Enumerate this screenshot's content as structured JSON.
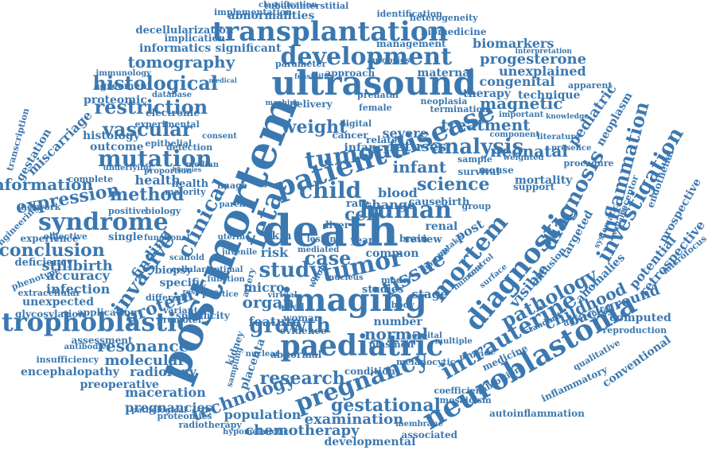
{
  "accent_color": "#3b78b0",
  "words": [
    "postmortem",
    "death",
    "ultrasound",
    "imaging",
    "paediatric",
    "tumour",
    "tumor",
    "disease",
    "diagnostic",
    "mortem",
    "patient",
    "child",
    "fetal",
    "human",
    "trophoblastic",
    "syndrome",
    "transplantation",
    "development",
    "neuroblastoma",
    "intrauterine",
    "pregnancy",
    "invasive",
    "clinical",
    "analysis",
    "tissue",
    "study",
    "growth",
    "expression",
    "mutation",
    "vascular",
    "histological",
    "restriction",
    "method",
    "conclusion",
    "gestational",
    "examination",
    "research",
    "chemotherapy",
    "technology",
    "population",
    "infant",
    "treatment",
    "cell",
    "case",
    "pathology",
    "investigation",
    "diagnosis",
    "inflammation",
    "childhood",
    "neonatal",
    "protein",
    "resonance",
    "tomography",
    "magnetic",
    "fetuses",
    "weight",
    "stillbirth",
    "information",
    "finding",
    "progesterone",
    "congenital",
    "therapy",
    "technique",
    "unexplained",
    "biomarkers",
    "maternal",
    "miscarriage",
    "outcome",
    "histology",
    "health",
    "organ",
    "micro",
    "molecular",
    "radiology",
    "encephalopathy",
    "maceration",
    "pregnancies",
    "preoperative",
    "proteomic",
    "accuracy",
    "infection",
    "unexpected",
    "glycosylation",
    "deficiency",
    "experience",
    "engineering",
    "informatics",
    "implication",
    "significant",
    "decellularization",
    "abnormalities",
    "implementation",
    "tubulointerstitial",
    "identification",
    "heterogeneity",
    "biomedicine",
    "management",
    "immunology",
    "transcription",
    "gestation",
    "approach",
    "feasibility",
    "cancer",
    "science",
    "mortality",
    "procedure",
    "background",
    "computed",
    "potential",
    "anomalies",
    "prospective",
    "retrospective",
    "conventional",
    "inflammatory",
    "autoinflammation",
    "developmental",
    "hypomelanotic",
    "radiotherapy",
    "proteomics",
    "pathological",
    "associated",
    "medicine",
    "standard",
    "placenta",
    "kidney",
    "abnormal",
    "condition",
    "coefficient",
    "mosaicism",
    "membrane",
    "whole",
    "virtual",
    "bowel",
    "normal",
    "number",
    "hospital",
    "multiple",
    "feature",
    "woman",
    "specific",
    "biopsy",
    "application",
    "assessment",
    "insufficiency",
    "antibodies",
    "sampling",
    "different",
    "phenotype",
    "extracellular",
    "positive",
    "biology",
    "complete",
    "health",
    "risk",
    "skin",
    "liver",
    "rate",
    "year",
    "blood",
    "cause",
    "birth",
    "change",
    "common",
    "renal",
    "brain",
    "post",
    "review",
    "group",
    "mouse",
    "survival",
    "sample",
    "related",
    "digital",
    "infancy",
    "severe",
    "studies",
    "body",
    "stage",
    "model",
    "visible",
    "diffusion",
    "targeted",
    "pediatric",
    "neoplasm",
    "termination",
    "neoplasia",
    "apparent",
    "interpretation",
    "knowledge",
    "component",
    "literature",
    "important",
    "presence",
    "weighted",
    "support",
    "receptor",
    "endothelial",
    "microfocus",
    "reproduction",
    "differential",
    "systematic",
    "available",
    "experimental",
    "electronic",
    "medical",
    "database",
    "agreement",
    "underlying",
    "proportion",
    "biopsies",
    "majority",
    "network",
    "epithelial",
    "detection",
    "consent",
    "median",
    "image",
    "parent",
    "single",
    "objective",
    "functional",
    "scaffold",
    "cellular",
    "optimal",
    "function",
    "variant",
    "promoter",
    "specificity",
    "practice",
    "response",
    "juvenile",
    "uterine",
    "artery",
    "nuclear",
    "evidence",
    "plasmon",
    "provide",
    "inhibition",
    "qualitative",
    "melanocytic",
    "lesion",
    "nucleus",
    "female",
    "classification",
    "parameter",
    "autopsies",
    "prenatal",
    "machine",
    "delivery",
    "fibrosis",
    "uptake",
    "mediated",
    "control",
    "immune",
    "surface",
    "pattern"
  ]
}
